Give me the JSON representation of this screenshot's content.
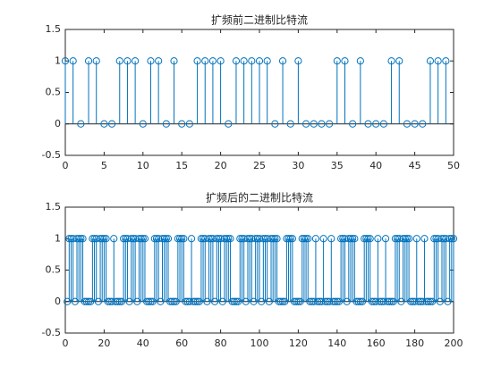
{
  "chart_data": [
    {
      "type": "stem",
      "title": "扩频前二进制比特流",
      "color": "#0072bd",
      "x": [
        0,
        1,
        2,
        3,
        4,
        5,
        6,
        7,
        8,
        9,
        10,
        11,
        12,
        13,
        14,
        15,
        16,
        17,
        18,
        19,
        20,
        21,
        22,
        23,
        24,
        25,
        26,
        27,
        28,
        29,
        30,
        31,
        32,
        33,
        34,
        35,
        36,
        37,
        38,
        39,
        40,
        41,
        42,
        43,
        44,
        45,
        46,
        47,
        48,
        49
      ],
      "values": [
        1,
        1,
        0,
        1,
        1,
        0,
        0,
        1,
        1,
        1,
        0,
        1,
        1,
        0,
        1,
        0,
        0,
        1,
        1,
        1,
        1,
        0,
        1,
        1,
        1,
        1,
        1,
        0,
        1,
        0,
        1,
        0,
        0,
        0,
        0,
        1,
        1,
        0,
        1,
        0,
        0,
        0,
        1,
        1,
        0,
        0,
        0,
        1,
        1,
        1
      ],
      "xlim": [
        0,
        50
      ],
      "xticks": [
        0,
        5,
        10,
        15,
        20,
        25,
        30,
        35,
        40,
        45,
        50
      ],
      "ylim": [
        -0.5,
        1.5
      ],
      "yticks": [
        -0.5,
        0,
        0.5,
        1,
        1.5
      ]
    },
    {
      "type": "stem",
      "title": "扩频后的二进制比特流",
      "color": "#0072bd",
      "x": [
        1,
        2,
        3,
        4,
        5,
        6,
        7,
        8,
        9,
        10,
        11,
        12,
        13,
        14,
        15,
        16,
        17,
        18,
        19,
        20,
        21,
        22,
        23,
        24,
        25,
        26,
        27,
        28,
        29,
        30,
        31,
        32,
        33,
        34,
        35,
        36,
        37,
        38,
        39,
        40,
        41,
        42,
        43,
        44,
        45,
        46,
        47,
        48,
        49,
        50,
        51,
        52,
        53,
        54,
        55,
        56,
        57,
        58,
        59,
        60,
        61,
        62,
        63,
        64,
        65,
        66,
        67,
        68,
        69,
        70,
        71,
        72,
        73,
        74,
        75,
        76,
        77,
        78,
        79,
        80,
        81,
        82,
        83,
        84,
        85,
        86,
        87,
        88,
        89,
        90,
        91,
        92,
        93,
        94,
        95,
        96,
        97,
        98,
        99,
        100,
        101,
        102,
        103,
        104,
        105,
        106,
        107,
        108,
        109,
        110,
        111,
        112,
        113,
        114,
        115,
        116,
        117,
        118,
        119,
        120,
        121,
        122,
        123,
        124,
        125,
        126,
        127,
        128,
        129,
        130,
        131,
        132,
        133,
        134,
        135,
        136,
        137,
        138,
        139,
        140,
        141,
        142,
        143,
        144,
        145,
        146,
        147,
        148,
        149,
        150,
        151,
        152,
        153,
        154,
        155,
        156,
        157,
        158,
        159,
        160,
        161,
        162,
        163,
        164,
        165,
        166,
        167,
        168,
        169,
        170,
        171,
        172,
        173,
        174,
        175,
        176,
        177,
        178,
        179,
        180,
        181,
        182,
        183,
        184,
        185,
        186,
        187,
        188,
        189,
        190,
        191,
        192,
        193,
        194,
        195,
        196,
        197,
        198,
        199,
        200
      ],
      "values": [
        0,
        1,
        1,
        1,
        0,
        1,
        1,
        1,
        1,
        0,
        0,
        0,
        0,
        1,
        1,
        1,
        0,
        1,
        1,
        1,
        1,
        0,
        0,
        0,
        1,
        0,
        0,
        0,
        0,
        1,
        1,
        1,
        0,
        1,
        1,
        1,
        0,
        1,
        1,
        1,
        1,
        0,
        0,
        0,
        0,
        1,
        1,
        1,
        0,
        1,
        1,
        1,
        1,
        0,
        0,
        0,
        0,
        1,
        1,
        1,
        1,
        0,
        0,
        0,
        1,
        0,
        0,
        0,
        0,
        1,
        1,
        1,
        0,
        1,
        1,
        1,
        0,
        1,
        1,
        1,
        0,
        1,
        1,
        1,
        1,
        0,
        0,
        0,
        0,
        1,
        1,
        1,
        0,
        1,
        1,
        1,
        0,
        1,
        1,
        1,
        0,
        1,
        1,
        1,
        0,
        1,
        1,
        1,
        1,
        0,
        0,
        0,
        0,
        1,
        1,
        1,
        1,
        0,
        0,
        0,
        0,
        1,
        1,
        1,
        1,
        0,
        0,
        0,
        1,
        0,
        0,
        0,
        1,
        0,
        0,
        0,
        1,
        0,
        0,
        0,
        0,
        1,
        1,
        1,
        0,
        1,
        1,
        1,
        1,
        0,
        0,
        0,
        0,
        1,
        1,
        1,
        1,
        0,
        0,
        0,
        1,
        0,
        0,
        0,
        1,
        0,
        0,
        0,
        0,
        1,
        1,
        1,
        0,
        1,
        1,
        1,
        1,
        0,
        0,
        0,
        1,
        0,
        0,
        0,
        1,
        0,
        0,
        0,
        0,
        1,
        1,
        1,
        0,
        1,
        1,
        1,
        0,
        1,
        1,
        1
      ],
      "xlim": [
        0,
        200
      ],
      "xticks": [
        0,
        20,
        40,
        60,
        80,
        100,
        120,
        140,
        160,
        180,
        200
      ],
      "ylim": [
        -0.5,
        1.5
      ],
      "yticks": [
        -0.5,
        0,
        0.5,
        1,
        1.5
      ]
    }
  ]
}
